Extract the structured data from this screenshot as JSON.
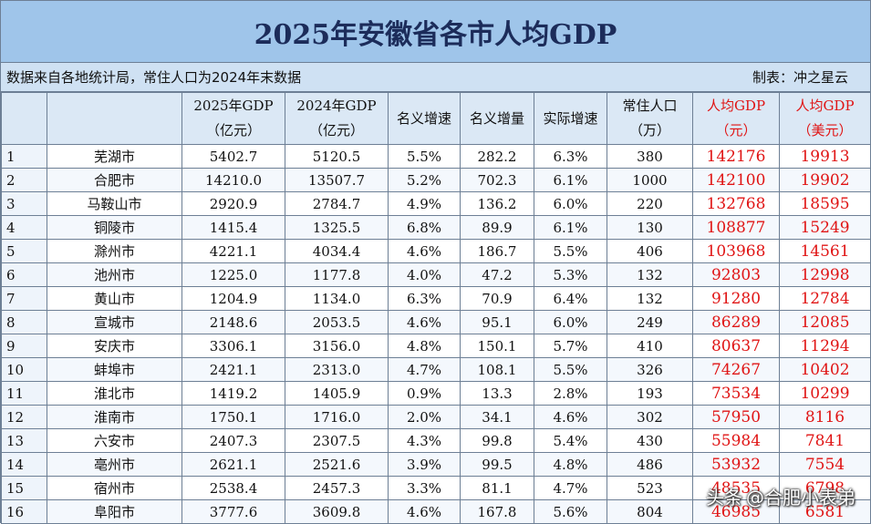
{
  "title": "2025年安徽省各市人均GDP",
  "source_note": "数据来自各地统计局，常住人口为2024年末数据",
  "author": "制表：冲之星云",
  "headers": [
    {
      "key": "idx",
      "line1": "",
      "line2": "",
      "red": false
    },
    {
      "key": "city",
      "line1": "",
      "line2": "",
      "red": false
    },
    {
      "key": "gdp2025",
      "line1": "2025年GDP",
      "line2": "（亿元）",
      "red": false
    },
    {
      "key": "gdp2024",
      "line1": "2024年GDP",
      "line2": "（亿元）",
      "red": false
    },
    {
      "key": "nominal_growth",
      "line1": "名义增速",
      "line2": "",
      "red": false
    },
    {
      "key": "nominal_increase",
      "line1": "名义增量",
      "line2": "",
      "red": false
    },
    {
      "key": "real_growth",
      "line1": "实际增速",
      "line2": "",
      "red": false
    },
    {
      "key": "population",
      "line1": "常住人口",
      "line2": "（万）",
      "red": false
    },
    {
      "key": "per_capita_yuan",
      "line1": "人均GDP",
      "line2": "（元）",
      "red": true
    },
    {
      "key": "per_capita_usd",
      "line1": "人均GDP",
      "line2": "（美元）",
      "red": true
    }
  ],
  "rows": [
    [
      "1",
      "芜湖市",
      "5402.7",
      "5120.5",
      "5.5%",
      "282.2",
      "6.3%",
      "380",
      "142176",
      "19913"
    ],
    [
      "2",
      "合肥市",
      "14210.0",
      "13507.7",
      "5.2%",
      "702.3",
      "6.1%",
      "1000",
      "142100",
      "19902"
    ],
    [
      "3",
      "马鞍山市",
      "2920.9",
      "2784.7",
      "4.9%",
      "136.2",
      "6.0%",
      "220",
      "132768",
      "18595"
    ],
    [
      "4",
      "铜陵市",
      "1415.4",
      "1325.5",
      "6.8%",
      "89.9",
      "6.1%",
      "130",
      "108877",
      "15249"
    ],
    [
      "5",
      "滁州市",
      "4221.1",
      "4034.4",
      "4.6%",
      "186.7",
      "5.5%",
      "406",
      "103968",
      "14561"
    ],
    [
      "6",
      "池州市",
      "1225.0",
      "1177.8",
      "4.0%",
      "47.2",
      "5.3%",
      "132",
      "92803",
      "12998"
    ],
    [
      "7",
      "黄山市",
      "1204.9",
      "1134.0",
      "6.3%",
      "70.9",
      "6.4%",
      "132",
      "91280",
      "12784"
    ],
    [
      "8",
      "宣城市",
      "2148.6",
      "2053.5",
      "4.6%",
      "95.1",
      "6.0%",
      "249",
      "86289",
      "12085"
    ],
    [
      "9",
      "安庆市",
      "3306.1",
      "3156.0",
      "4.8%",
      "150.1",
      "5.7%",
      "410",
      "80637",
      "11294"
    ],
    [
      "10",
      "蚌埠市",
      "2421.1",
      "2313.0",
      "4.7%",
      "108.1",
      "5.5%",
      "326",
      "74267",
      "10402"
    ],
    [
      "11",
      "淮北市",
      "1419.2",
      "1405.9",
      "0.9%",
      "13.3",
      "2.8%",
      "193",
      "73534",
      "10299"
    ],
    [
      "12",
      "淮南市",
      "1750.1",
      "1716.0",
      "2.0%",
      "34.1",
      "4.6%",
      "302",
      "57950",
      "8116"
    ],
    [
      "13",
      "六安市",
      "2407.3",
      "2307.5",
      "4.3%",
      "99.8",
      "5.4%",
      "430",
      "55984",
      "7841"
    ],
    [
      "14",
      "亳州市",
      "2621.1",
      "2521.6",
      "3.9%",
      "99.5",
      "4.8%",
      "486",
      "53932",
      "7554"
    ],
    [
      "15",
      "宿州市",
      "2538.4",
      "2457.3",
      "3.3%",
      "81.1",
      "4.7%",
      "523",
      "48535",
      "6798"
    ],
    [
      "16",
      "阜阳市",
      "3777.6",
      "3609.8",
      "4.6%",
      "167.8",
      "5.6%",
      "804",
      "46985",
      "6581"
    ]
  ],
  "watermark": {
    "prefix": "头条",
    "handle": "@合肥小表弟"
  },
  "colors": {
    "title_bg": "#9fc5ea",
    "meta_bg": "#cfe1f3",
    "header_bg": "#dbe8f5",
    "accent_red": "#e01414",
    "border": "#6d7f95"
  }
}
